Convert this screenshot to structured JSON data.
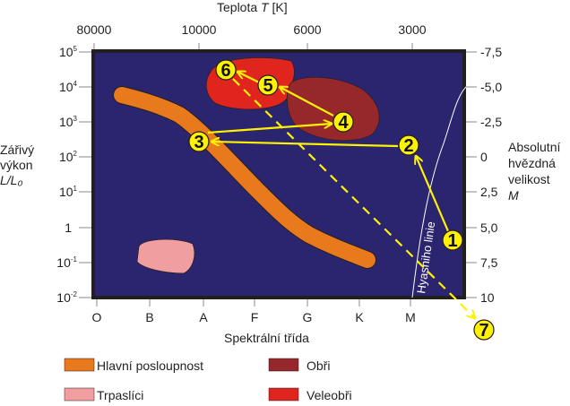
{
  "top_axis": {
    "title": "Teplota",
    "title_var": "T",
    "title_unit": "[K]",
    "ticks": [
      "80000",
      "10000",
      "6000",
      "3000"
    ]
  },
  "left_axis": {
    "title_lines": [
      "Zářivý",
      "výkon"
    ],
    "title_var": "L/L₀",
    "ticks": [
      {
        "b": "10",
        "e": "5"
      },
      {
        "b": "10",
        "e": "4"
      },
      {
        "b": "10",
        "e": "3"
      },
      {
        "b": "10",
        "e": "2"
      },
      {
        "b": "10",
        "e": "1"
      },
      {
        "b": "1",
        "e": ""
      },
      {
        "b": "10",
        "e": "-1"
      },
      {
        "b": "10",
        "e": "-2"
      }
    ]
  },
  "right_axis": {
    "title_lines": [
      "Absolutní",
      "hvězdná",
      "velikost"
    ],
    "title_var": "M",
    "ticks": [
      "-7,5",
      "-5,0",
      "-2,5",
      "0",
      "2,5",
      "5,0",
      "7,5",
      "10"
    ]
  },
  "bottom_axis": {
    "title": "Spektrální třída",
    "ticks": [
      "O",
      "B",
      "A",
      "F",
      "G",
      "K",
      "M"
    ]
  },
  "hayashi_label": "Hyashiho linie",
  "points": [
    "1",
    "2",
    "3",
    "4",
    "5",
    "6",
    "7"
  ],
  "legend": [
    {
      "label": "Hlavní posloupnost",
      "color": "#e8791d"
    },
    {
      "label": "Obři",
      "color": "#96282b"
    },
    {
      "label": "Trpaslíci",
      "color": "#f19ea0"
    },
    {
      "label": "Veleobři",
      "color": "#e0251f"
    }
  ],
  "colors": {
    "plot_bg": "#2b2570",
    "path": "#fff200"
  }
}
